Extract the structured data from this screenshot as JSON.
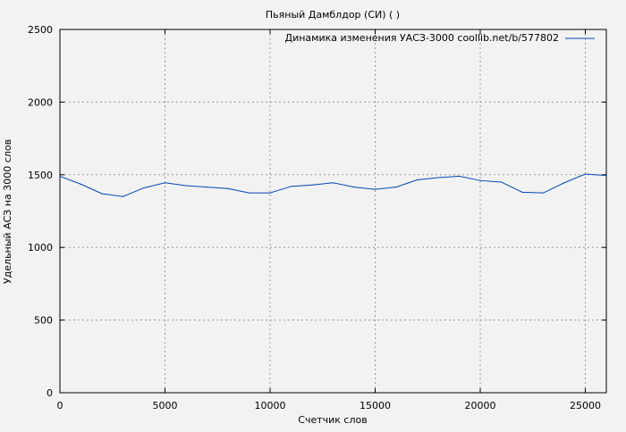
{
  "chart_data": {
    "type": "line",
    "title": "Пьяный Дамблдор (СИ) ( )",
    "xlabel": "Счетчик слов",
    "ylabel": "Удельный АСЗ на 3000 слов",
    "xlim": [
      0,
      26000
    ],
    "ylim": [
      0,
      2500
    ],
    "xticks": [
      0,
      5000,
      10000,
      15000,
      20000,
      25000
    ],
    "yticks": [
      0,
      500,
      1000,
      1500,
      2000,
      2500
    ],
    "grid": true,
    "legend_position": "top-right",
    "series": [
      {
        "name": "Динамика изменения УАСЗ-3000 coollib.net/b/577802",
        "color": "#0047b3",
        "x": [
          0,
          1000,
          2000,
          3000,
          4000,
          5000,
          6000,
          7000,
          8000,
          9000,
          10000,
          11000,
          12000,
          13000,
          14000,
          15000,
          16000,
          17000,
          18000,
          19000,
          20000,
          21000,
          22000,
          23000,
          24000,
          25000,
          26000
        ],
        "y": [
          1490,
          1435,
          1370,
          1350,
          1410,
          1445,
          1425,
          1415,
          1405,
          1375,
          1375,
          1420,
          1430,
          1445,
          1415,
          1400,
          1415,
          1465,
          1480,
          1490,
          1460,
          1450,
          1380,
          1375,
          1445,
          1505,
          1495
        ]
      }
    ]
  }
}
